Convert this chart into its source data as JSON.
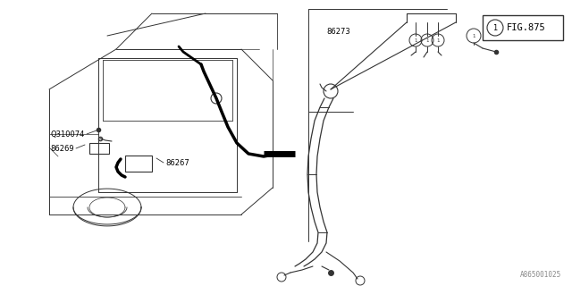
{
  "bg_color": "#ffffff",
  "line_color": "#333333",
  "thick_line_color": "#000000",
  "title_box_text": "FIG.875",
  "watermark": "A865001025"
}
